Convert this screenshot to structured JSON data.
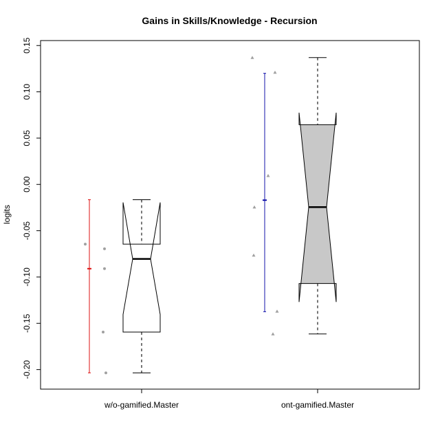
{
  "chart_data": {
    "type": "box",
    "title": "Gains in Skills/Knowledge - Recursion",
    "xlabel": "",
    "ylabel": "logits",
    "ylim": [
      -0.217,
      0.155
    ],
    "y_ticks": [
      -0.2,
      -0.15,
      -0.1,
      -0.05,
      0.0,
      0.05,
      0.1,
      0.15
    ],
    "y_tick_labels": [
      "-0.20",
      "-0.15",
      "-0.10",
      "-0.05",
      "0.00",
      "0.05",
      "0.10",
      "0.15"
    ],
    "categories": [
      "w/o-gamified.Master",
      "ont-gamified.Master"
    ],
    "boxes": [
      {
        "name": "w/o-gamified.Master",
        "whisker_low": -0.2035,
        "q1": -0.1595,
        "median": -0.0805,
        "q3": -0.0645,
        "whisker_high": -0.0165,
        "notch_low": -0.1405,
        "notch_high": -0.0195,
        "fill": "#ffffff",
        "points": [
          -0.0645,
          -0.0695,
          -0.091,
          -0.1595,
          -0.2035
        ],
        "point_shape": "circle",
        "mean": -0.091,
        "mean_low": -0.2035,
        "mean_high": -0.0165,
        "interval_color": "#dd1111"
      },
      {
        "name": "ont-gamified.Master",
        "whisker_low": -0.1615,
        "q1": -0.107,
        "median": -0.0245,
        "q3": 0.0645,
        "whisker_high": 0.137,
        "notch_low": -0.127,
        "notch_high": 0.0775,
        "fill": "#c8c8c8",
        "points": [
          0.137,
          0.121,
          0.0095,
          -0.0245,
          -0.0765,
          -0.137,
          -0.1615
        ],
        "point_shape": "triangle",
        "mean": -0.017,
        "mean_low": -0.1375,
        "mean_high": 0.12,
        "interval_color": "#1111aa"
      }
    ],
    "grid": false,
    "legend": "none"
  }
}
